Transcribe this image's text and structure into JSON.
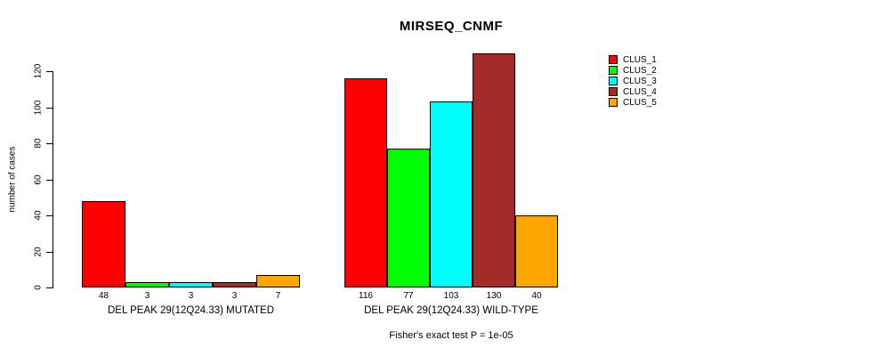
{
  "title": "MIRSEQ_CNMF",
  "subtitle": "Fisher's exact test P = 1e-05",
  "ylabel": "number of cases",
  "chart_data": {
    "type": "bar",
    "categories": [
      "DEL PEAK 29(12Q24.33) MUTATED",
      "DEL PEAK 29(12Q24.33) WILD-TYPE"
    ],
    "series": [
      {
        "name": "CLUS_1",
        "color": "#FF0000",
        "values": [
          48,
          116
        ]
      },
      {
        "name": "CLUS_2",
        "color": "#00FF00",
        "values": [
          3,
          77
        ]
      },
      {
        "name": "CLUS_3",
        "color": "#00FFFF",
        "values": [
          3,
          103
        ]
      },
      {
        "name": "CLUS_4",
        "color": "#A52A2A",
        "values": [
          3,
          130
        ]
      },
      {
        "name": "CLUS_5",
        "color": "#FFA500",
        "values": [
          7,
          40
        ]
      }
    ],
    "bar_value_labels": [
      [
        48,
        3,
        3,
        3,
        7
      ],
      [
        116,
        77,
        103,
        130,
        40
      ]
    ],
    "yticks": [
      0,
      20,
      40,
      60,
      80,
      100,
      120
    ],
    "ylim": [
      0,
      130
    ],
    "xlabel": "",
    "grid": false,
    "legend_position": "right",
    "axis_color": "#000000"
  }
}
